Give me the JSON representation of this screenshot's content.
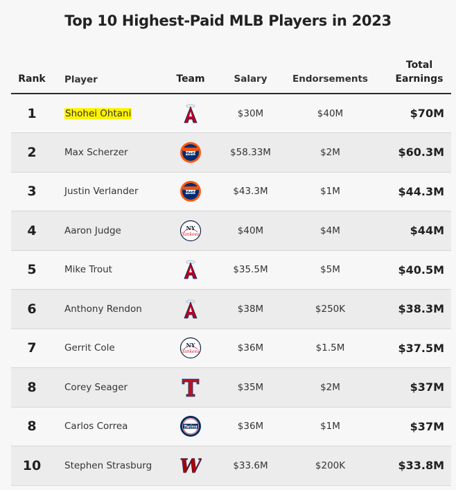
{
  "chart_data": {
    "type": "table",
    "title": "Top 10 Highest-Paid MLB Players in 2023",
    "columns": {
      "rank": "Rank",
      "player": "Player",
      "team": "Team",
      "salary": "Salary",
      "endorsements": "Endorsements",
      "total": "Total Earnings"
    },
    "rows": [
      {
        "rank": "1",
        "player": "Shohei Ohtani",
        "team_icon": "angels-logo-icon",
        "salary": "$30M",
        "endorsements": "$40M",
        "total": "$70M"
      },
      {
        "rank": "2",
        "player": "Max Scherzer",
        "team_icon": "mets-logo-icon",
        "salary": "$58.33M",
        "endorsements": "$2M",
        "total": "$60.3M"
      },
      {
        "rank": "3",
        "player": "Justin Verlander",
        "team_icon": "mets-logo-icon",
        "salary": "$43.3M",
        "endorsements": "$1M",
        "total": "$44.3M"
      },
      {
        "rank": "4",
        "player": "Aaron Judge",
        "team_icon": "yankees-logo-icon",
        "salary": "$40M",
        "endorsements": "$4M",
        "total": "$44M"
      },
      {
        "rank": "5",
        "player": "Mike Trout",
        "team_icon": "angels-logo-icon",
        "salary": "$35.5M",
        "endorsements": "$5M",
        "total": "$40.5M"
      },
      {
        "rank": "6",
        "player": "Anthony Rendon",
        "team_icon": "angels-logo-icon",
        "salary": "$38M",
        "endorsements": "$250K",
        "total": "$38.3M"
      },
      {
        "rank": "7",
        "player": "Gerrit Cole",
        "team_icon": "yankees-logo-icon",
        "salary": "$36M",
        "endorsements": "$1.5M",
        "total": "$37.5M"
      },
      {
        "rank": "8",
        "player": "Corey Seager",
        "team_icon": "rangers-logo-icon",
        "salary": "$35M",
        "endorsements": "$2M",
        "total": "$37M"
      },
      {
        "rank": "8",
        "player": "Carlos Correa",
        "team_icon": "twins-logo-icon",
        "salary": "$36M",
        "endorsements": "$1M",
        "total": "$37M"
      },
      {
        "rank": "10",
        "player": "Stephen Strasburg",
        "team_icon": "nationals-logo-icon",
        "salary": "$33.6M",
        "endorsements": "$200K",
        "total": "$33.8M"
      }
    ]
  },
  "highlight": {
    "row_index": 0,
    "color": "#fff200"
  },
  "colors": {
    "angels_red": "#ba0021",
    "mets_blue": "#002d72",
    "mets_orange": "#ff5910",
    "yankees_navy": "#0c2340",
    "rangers_red": "#c0111f",
    "twins_navy": "#002b5c",
    "nationals_red": "#ab0003"
  }
}
